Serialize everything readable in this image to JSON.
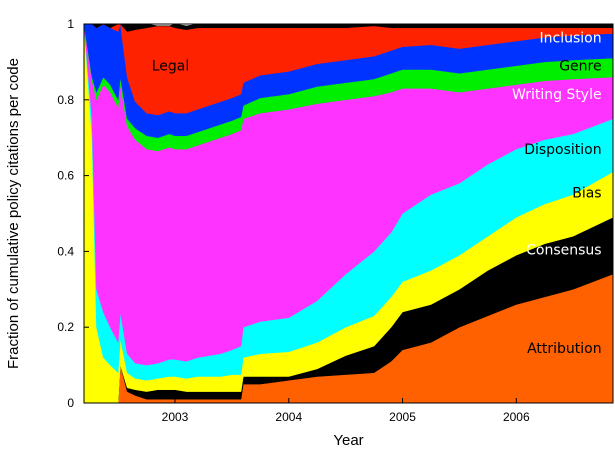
{
  "chart_data": {
    "type": "area",
    "stacked": true,
    "normalized": true,
    "title": "",
    "xlabel": "Year",
    "ylabel": "Fraction of cumulative policy citations per code",
    "xlim": [
      2002.2,
      2006.85
    ],
    "ylim": [
      0,
      1
    ],
    "x_ticks": [
      2003,
      2004,
      2005,
      2006
    ],
    "x_tick_labels": [
      "2003",
      "2004",
      "2005",
      "2006"
    ],
    "y_ticks": [
      0,
      0.2,
      0.4,
      0.6,
      0.8,
      1
    ],
    "y_tick_labels": [
      "0",
      "0.2",
      "0.4",
      "0.6",
      "0.8",
      "1"
    ],
    "grid": false,
    "legend": "none (series labeled inside areas)",
    "x": [
      2002.2,
      2002.27,
      2002.31,
      2002.37,
      2002.43,
      2002.5,
      2002.52,
      2002.58,
      2002.65,
      2002.75,
      2002.85,
      2002.95,
      2003.0,
      2003.1,
      2003.2,
      2003.3,
      2003.4,
      2003.5,
      2003.58,
      2003.6,
      2003.75,
      2004.0,
      2004.25,
      2004.5,
      2004.75,
      2004.9,
      2005.0,
      2005.25,
      2005.5,
      2005.75,
      2006.0,
      2006.25,
      2006.5,
      2006.85
    ],
    "series": [
      {
        "name": "Attribution",
        "color": "#ff6000",
        "values": [
          0,
          0,
          0,
          0,
          0,
          0.0,
          0.1,
          0.03,
          0.02,
          0.01,
          0.01,
          0.01,
          0.01,
          0.01,
          0.01,
          0.01,
          0.01,
          0.01,
          0.01,
          0.05,
          0.05,
          0.06,
          0.07,
          0.075,
          0.08,
          0.11,
          0.14,
          0.16,
          0.2,
          0.23,
          0.26,
          0.28,
          0.3,
          0.34
        ]
      },
      {
        "name": "Consensus",
        "color": "#000000",
        "values": [
          0,
          0,
          0,
          0,
          0,
          0,
          0,
          0.01,
          0.015,
          0.02,
          0.025,
          0.025,
          0.025,
          0.02,
          0.02,
          0.02,
          0.02,
          0.02,
          0.02,
          0.02,
          0.02,
          0.01,
          0.02,
          0.05,
          0.07,
          0.09,
          0.1,
          0.1,
          0.1,
          0.12,
          0.13,
          0.14,
          0.14,
          0.15
        ]
      },
      {
        "name": "Bias",
        "color": "#ffff00",
        "values": [
          1,
          0.7,
          0.2,
          0.12,
          0.1,
          0.08,
          0.07,
          0.04,
          0.03,
          0.03,
          0.03,
          0.035,
          0.035,
          0.035,
          0.04,
          0.04,
          0.04,
          0.045,
          0.045,
          0.05,
          0.06,
          0.065,
          0.07,
          0.075,
          0.08,
          0.08,
          0.08,
          0.09,
          0.09,
          0.09,
          0.1,
          0.105,
          0.11,
          0.12
        ]
      },
      {
        "name": "Disposition",
        "color": "#00ffff",
        "values": [
          0,
          0.05,
          0.1,
          0.12,
          0.1,
          0.08,
          0.07,
          0.05,
          0.04,
          0.04,
          0.04,
          0.045,
          0.045,
          0.045,
          0.05,
          0.055,
          0.06,
          0.065,
          0.075,
          0.08,
          0.085,
          0.09,
          0.11,
          0.14,
          0.17,
          0.17,
          0.18,
          0.2,
          0.19,
          0.19,
          0.18,
          0.17,
          0.16,
          0.14
        ]
      },
      {
        "name": "Writing Style",
        "color": "#ff33ff",
        "values": [
          0,
          0.1,
          0.5,
          0.6,
          0.62,
          0.62,
          0.6,
          0.6,
          0.59,
          0.57,
          0.56,
          0.56,
          0.555,
          0.56,
          0.56,
          0.565,
          0.57,
          0.57,
          0.57,
          0.55,
          0.55,
          0.55,
          0.52,
          0.46,
          0.41,
          0.37,
          0.33,
          0.28,
          0.24,
          0.2,
          0.17,
          0.155,
          0.145,
          0.11
        ]
      },
      {
        "name": "Genre",
        "color": "#00ee00",
        "values": [
          0,
          0.01,
          0.02,
          0.02,
          0.02,
          0.02,
          0.02,
          0.02,
          0.03,
          0.035,
          0.035,
          0.035,
          0.035,
          0.035,
          0.035,
          0.035,
          0.035,
          0.035,
          0.035,
          0.035,
          0.04,
          0.04,
          0.045,
          0.045,
          0.045,
          0.05,
          0.05,
          0.05,
          0.05,
          0.05,
          0.05,
          0.05,
          0.05,
          0.05
        ]
      },
      {
        "name": "Inclusion",
        "color": "#0033ff",
        "values": [
          0,
          0.14,
          0.17,
          0.14,
          0.15,
          0.18,
          0.14,
          0.11,
          0.07,
          0.06,
          0.06,
          0.06,
          0.06,
          0.06,
          0.06,
          0.06,
          0.06,
          0.06,
          0.06,
          0.06,
          0.06,
          0.06,
          0.06,
          0.06,
          0.06,
          0.06,
          0.06,
          0.065,
          0.065,
          0.065,
          0.065,
          0.065,
          0.065,
          0.065
        ]
      },
      {
        "name": "Legal",
        "color": "#ff2200",
        "values": [
          0,
          0,
          0,
          0,
          0,
          0.02,
          0,
          0.12,
          0.19,
          0.225,
          0.235,
          0.225,
          0.225,
          0.22,
          0.215,
          0.205,
          0.195,
          0.185,
          0.175,
          0.145,
          0.125,
          0.115,
          0.095,
          0.085,
          0.08,
          0.06,
          0.05,
          0.045,
          0.055,
          0.045,
          0.035,
          0.025,
          0.02,
          0.015
        ]
      },
      {
        "name": "",
        "color": "#000000",
        "values": [
          0,
          0,
          0.01,
          0,
          0.01,
          0,
          0,
          0.02,
          0.02,
          0.01,
          0,
          0,
          0.01,
          0.01,
          0.01,
          0.01,
          0.01,
          0.01,
          0.01,
          0.01,
          0.01,
          0.01,
          0.01,
          0.01,
          0.01,
          0.01,
          0.01,
          0.01,
          0.01,
          0.01,
          0.01,
          0.01,
          0.01,
          0.01
        ]
      }
    ],
    "annotations": [
      {
        "text": "Legal",
        "x": 2002.96,
        "y": 0.89,
        "color": "#000000"
      },
      {
        "text": "Inclusion",
        "x": 2006.75,
        "y": 0.965,
        "color": "#ffffff"
      },
      {
        "text": "Genre",
        "x": 2006.75,
        "y": 0.89,
        "color": "#000000"
      },
      {
        "text": "Writing Style",
        "x": 2006.75,
        "y": 0.815,
        "color": "#ffffff"
      },
      {
        "text": "Disposition",
        "x": 2006.75,
        "y": 0.67,
        "color": "#000000"
      },
      {
        "text": "Bias",
        "x": 2006.75,
        "y": 0.555,
        "color": "#000000"
      },
      {
        "text": "Consensus",
        "x": 2006.75,
        "y": 0.405,
        "color": "#ffffff"
      },
      {
        "text": "Attribution",
        "x": 2006.75,
        "y": 0.145,
        "color": "#000000"
      }
    ]
  }
}
